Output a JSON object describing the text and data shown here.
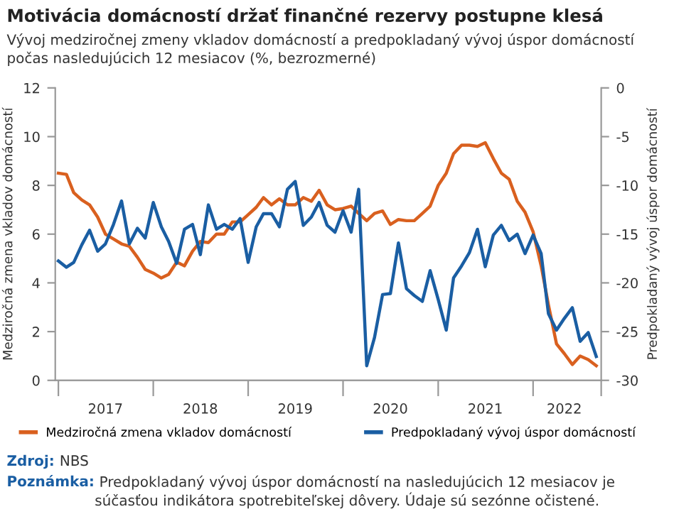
{
  "chart_data": {
    "type": "line",
    "title": "Motivácia domácností držať finančné rezervy postupne klesá",
    "subtitle": "Vývoj medziročnej zmeny vkladov domácností a predpokladaný vývoj úspor domácností počas nasledujúcich 12 mesiacov (%, bezrozmerné)",
    "ylabel": "Medziročná zmena vkladov domácností",
    "y2label": "Predpokladaný vývoj úspor domácností",
    "x": [
      "2017-01",
      "2017-02",
      "2017-03",
      "2017-04",
      "2017-05",
      "2017-06",
      "2017-07",
      "2017-08",
      "2017-09",
      "2017-10",
      "2017-11",
      "2017-12",
      "2018-01",
      "2018-02",
      "2018-03",
      "2018-04",
      "2018-05",
      "2018-06",
      "2018-07",
      "2018-08",
      "2018-09",
      "2018-10",
      "2018-11",
      "2018-12",
      "2019-01",
      "2019-02",
      "2019-03",
      "2019-04",
      "2019-05",
      "2019-06",
      "2019-07",
      "2019-08",
      "2019-09",
      "2019-10",
      "2019-11",
      "2019-12",
      "2020-01",
      "2020-02",
      "2020-03",
      "2020-04",
      "2020-05",
      "2020-06",
      "2020-07",
      "2020-08",
      "2020-09",
      "2020-10",
      "2020-11",
      "2020-12",
      "2021-01",
      "2021-02",
      "2021-03",
      "2021-04",
      "2021-05",
      "2021-06",
      "2021-07",
      "2021-08",
      "2021-09",
      "2021-10",
      "2021-11",
      "2021-12",
      "2022-01",
      "2022-02",
      "2022-03",
      "2022-04",
      "2022-05",
      "2022-06",
      "2022-07",
      "2022-08",
      "2022-09"
    ],
    "series": [
      {
        "name": "Medziročná zmena vkladov domácností",
        "color": "#d9601f",
        "values": [
          8.5,
          8.45,
          7.7,
          7.4,
          7.2,
          6.7,
          6.0,
          5.8,
          5.6,
          5.5,
          5.05,
          4.55,
          4.4,
          4.2,
          4.35,
          4.85,
          4.7,
          5.3,
          5.7,
          5.65,
          6.0,
          6.0,
          6.5,
          6.5,
          6.8,
          7.1,
          7.5,
          7.2,
          7.45,
          7.2,
          7.2,
          7.5,
          7.35,
          7.8,
          7.2,
          7.0,
          7.05,
          7.15,
          6.85,
          6.55,
          6.85,
          6.95,
          6.4,
          6.6,
          6.55,
          6.55,
          6.85,
          7.15,
          8.0,
          8.5,
          9.3,
          9.65,
          9.65,
          9.6,
          9.75,
          9.1,
          8.5,
          8.25,
          7.35,
          6.9,
          6.1,
          4.7,
          3.1,
          1.5,
          1.1,
          0.65,
          1.0,
          0.85,
          0.6
        ]
      },
      {
        "name": "Predpokladaný vývoj úspor domácností",
        "color": "#1a5ea3",
        "axis": "y2",
        "values": [
          -17.75,
          -18.4,
          -17.9,
          -16.1,
          -14.6,
          -16.75,
          -16.0,
          -14.0,
          -11.6,
          -16.0,
          -14.4,
          -15.4,
          -11.75,
          -14.25,
          -15.75,
          -18.0,
          -14.5,
          -14.0,
          -17.1,
          -12.0,
          -14.5,
          -14.0,
          -14.5,
          -13.4,
          -17.9,
          -14.25,
          -12.9,
          -12.9,
          -14.25,
          -10.4,
          -9.6,
          -14.1,
          -13.25,
          -11.75,
          -14.1,
          -14.8,
          -12.6,
          -14.8,
          -10.4,
          -28.5,
          -25.6,
          -21.2,
          -21.1,
          -15.9,
          -20.6,
          -21.3,
          -21.9,
          -18.75,
          -21.7,
          -24.85,
          -19.5,
          -18.25,
          -16.9,
          -14.5,
          -18.35,
          -15.1,
          -14.1,
          -15.65,
          -15.0,
          -17.0,
          -15.1,
          -17.0,
          -23.15,
          -24.85,
          -23.65,
          -22.55,
          -26.0,
          -25.1,
          -27.55
        ]
      }
    ],
    "xlim": [
      "2016-12-20",
      "2022-09-20"
    ],
    "xticks": [
      {
        "value": "2017-01",
        "label": null
      },
      {
        "value": "2017-07",
        "label": "2017"
      },
      {
        "value": "2018-01",
        "label": null
      },
      {
        "value": "2018-07",
        "label": "2018"
      },
      {
        "value": "2019-01",
        "label": null
      },
      {
        "value": "2019-07",
        "label": "2019"
      },
      {
        "value": "2020-01",
        "label": null
      },
      {
        "value": "2020-07",
        "label": "2020"
      },
      {
        "value": "2021-01",
        "label": null
      },
      {
        "value": "2021-07",
        "label": "2021"
      },
      {
        "value": "2022-01",
        "label": null
      },
      {
        "value": "2022-05",
        "label": "2022"
      },
      {
        "value": "2022-09-20",
        "label": null
      }
    ],
    "ylim": [
      0,
      12
    ],
    "yticks": [
      0,
      2,
      4,
      6,
      8,
      10,
      12
    ],
    "y2lim": [
      -30,
      0
    ],
    "y2ticks": [
      -30,
      -25,
      -20,
      -15,
      -10,
      -5,
      0
    ],
    "grid": false,
    "legend": "bottom",
    "line_style": "solid",
    "annotations": [
      "Zdroj: NBS",
      "Poznámka: Predpokladaný vývoj úspor domácností na nasledujúcich 12 mesiacov je súčasťou indikátora spotrebiteľskej dôvery. Údaje sú sezónne očistené."
    ]
  }
}
